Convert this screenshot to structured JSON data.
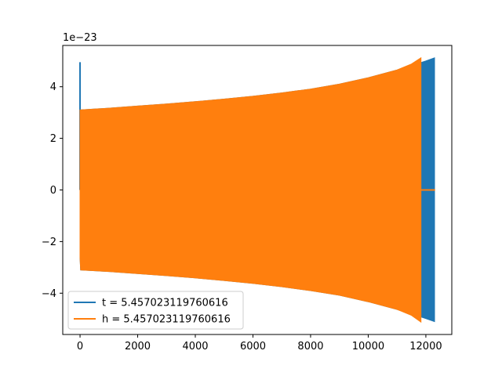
{
  "chart_data": {
    "type": "line",
    "title": "",
    "xlabel": "",
    "ylabel": "",
    "offset_text": "1e−23",
    "xlim": [
      -600,
      12900
    ],
    "ylim": [
      -5.6,
      5.6
    ],
    "xticks": [
      0,
      2000,
      4000,
      6000,
      8000,
      10000,
      12000
    ],
    "xtick_labels": [
      "0",
      "2000",
      "4000",
      "6000",
      "8000",
      "10000",
      "12000"
    ],
    "yticks": [
      -4,
      -2,
      0,
      2,
      4
    ],
    "ytick_labels": [
      "−4",
      "−2",
      "0",
      "2",
      "4"
    ],
    "grid": false,
    "legend_position": "lower-left",
    "series": [
      {
        "name": "t = 5.457023119760616",
        "color": "#1f77b4",
        "style": "chirp-envelope",
        "x": [
          0,
          12300
        ],
        "spike": {
          "x": 0,
          "y": 4.95
        },
        "upper": [
          [
            0,
            3.1
          ],
          [
            1000,
            3.17
          ],
          [
            2000,
            3.25
          ],
          [
            3000,
            3.33
          ],
          [
            4000,
            3.42
          ],
          [
            5000,
            3.52
          ],
          [
            6000,
            3.63
          ],
          [
            7000,
            3.76
          ],
          [
            8000,
            3.91
          ],
          [
            9000,
            4.1
          ],
          [
            10000,
            4.35
          ],
          [
            11000,
            4.65
          ],
          [
            11500,
            4.82
          ],
          [
            12000,
            5.0
          ],
          [
            12300,
            5.12
          ]
        ],
        "lower": [
          [
            0,
            -2.6
          ],
          [
            20,
            -3.1
          ],
          [
            1000,
            -3.16
          ],
          [
            2000,
            -3.24
          ],
          [
            3000,
            -3.32
          ],
          [
            4000,
            -3.41
          ],
          [
            5000,
            -3.51
          ],
          [
            6000,
            -3.62
          ],
          [
            7000,
            -3.75
          ],
          [
            8000,
            -3.9
          ],
          [
            9000,
            -4.08
          ],
          [
            10000,
            -4.33
          ],
          [
            11000,
            -4.63
          ],
          [
            11500,
            -4.8
          ],
          [
            12000,
            -4.98
          ],
          [
            12300,
            -5.1
          ]
        ]
      },
      {
        "name": "h = 5.457023119760616",
        "color": "#ff7f0e",
        "style": "chirp-envelope",
        "x": [
          0,
          11830
        ],
        "tail": {
          "x_start": 11830,
          "x_end": 12320,
          "y": 0
        },
        "upper": [
          [
            0,
            3.1
          ],
          [
            1000,
            3.17
          ],
          [
            2000,
            3.25
          ],
          [
            3000,
            3.33
          ],
          [
            4000,
            3.42
          ],
          [
            5000,
            3.52
          ],
          [
            6000,
            3.63
          ],
          [
            7000,
            3.76
          ],
          [
            8000,
            3.91
          ],
          [
            9000,
            4.1
          ],
          [
            10000,
            4.35
          ],
          [
            11000,
            4.65
          ],
          [
            11500,
            4.88
          ],
          [
            11830,
            5.12
          ]
        ],
        "lower": [
          [
            0,
            -2.6
          ],
          [
            20,
            -3.1
          ],
          [
            1000,
            -3.16
          ],
          [
            2000,
            -3.24
          ],
          [
            3000,
            -3.32
          ],
          [
            4000,
            -3.41
          ],
          [
            5000,
            -3.51
          ],
          [
            6000,
            -3.62
          ],
          [
            7000,
            -3.75
          ],
          [
            8000,
            -3.9
          ],
          [
            9000,
            -4.08
          ],
          [
            10000,
            -4.33
          ],
          [
            11000,
            -4.63
          ],
          [
            11500,
            -4.86
          ],
          [
            11830,
            -5.12
          ]
        ]
      }
    ]
  }
}
